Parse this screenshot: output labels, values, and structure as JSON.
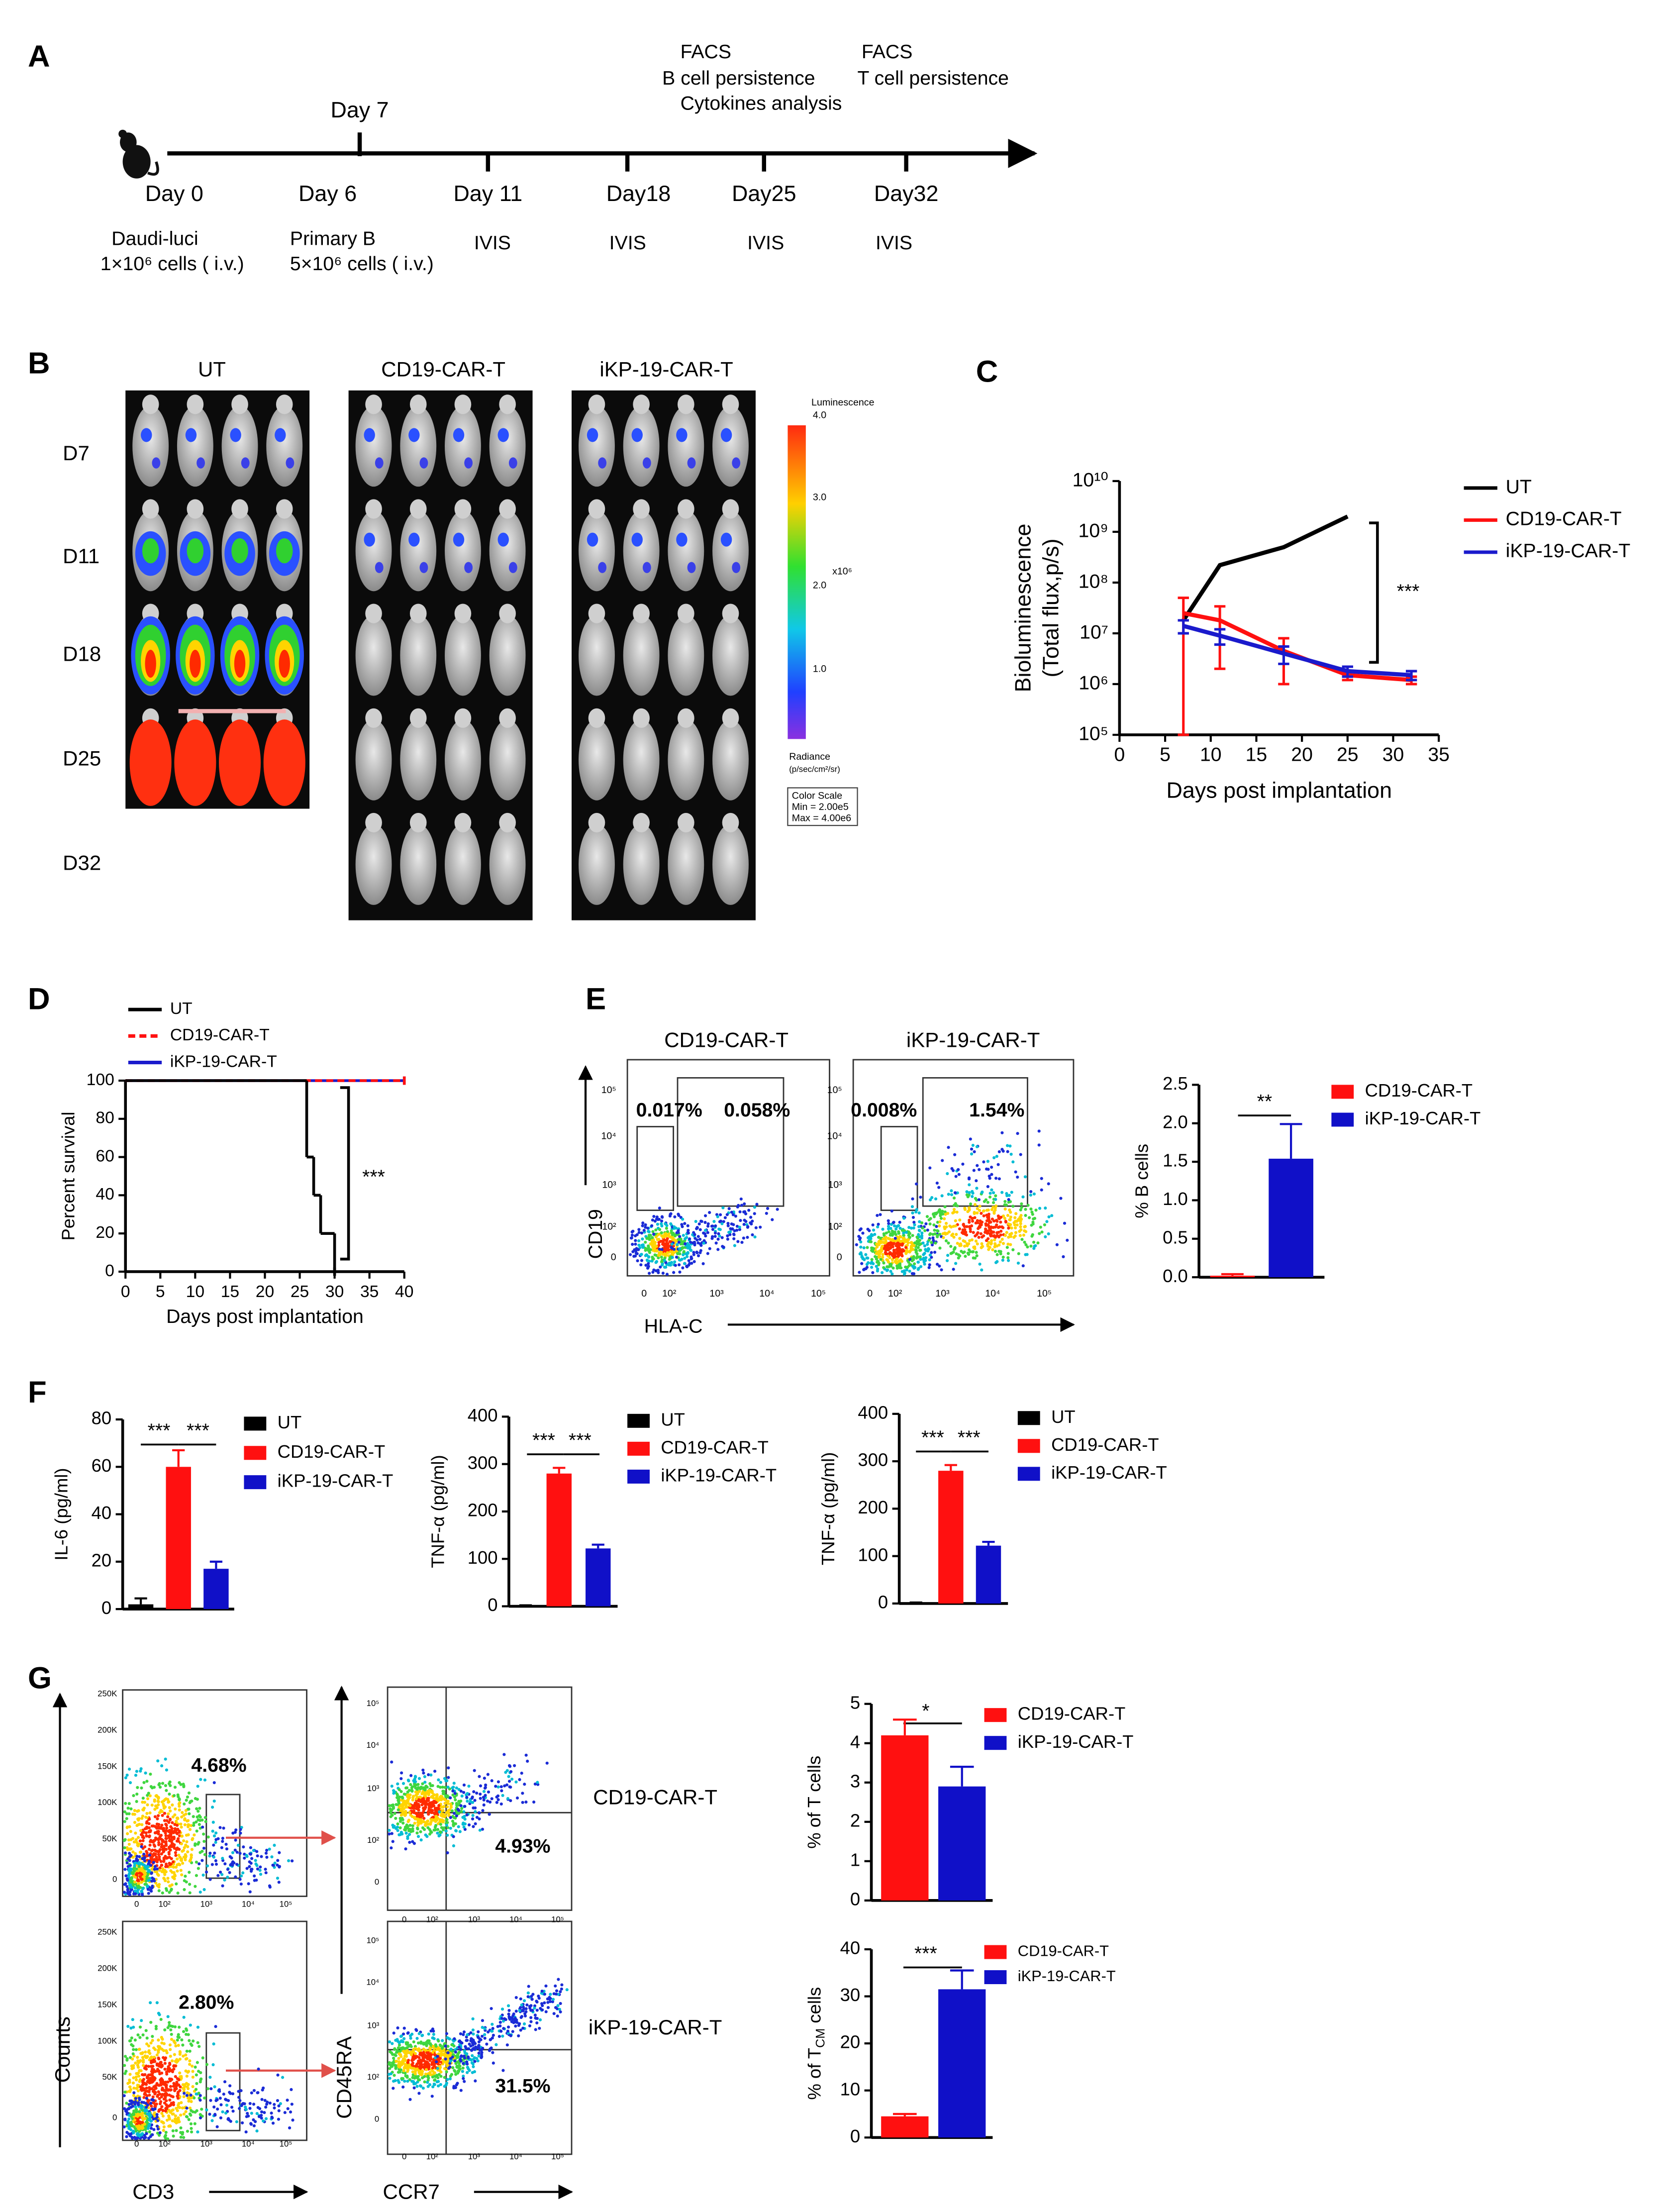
{
  "panel_labels": [
    "A",
    "B",
    "C",
    "D",
    "E",
    "F",
    "G"
  ],
  "timeline": {
    "days": [
      "Day 0",
      "Day 6",
      "Day 11",
      "Day18",
      "Day25",
      "Day32"
    ],
    "day7": "Day 7",
    "above": [
      "FACS",
      "B cell persistence",
      "Cytokines analysis",
      "FACS",
      "T cell persistence"
    ],
    "below": [
      "Daudi-luci",
      "1×10⁶ cells ( i.v.)",
      "Primary B",
      "5×10⁶ cells ( i.v.)",
      "IVIS",
      "IVIS",
      "IVIS",
      "IVIS"
    ]
  },
  "imaging": {
    "groups": [
      "UT",
      "CD19-CAR-T",
      "iKP-19-CAR-T"
    ],
    "days": [
      "D7",
      "D11",
      "D18",
      "D25",
      "D32"
    ],
    "colorbar": {
      "title": "Luminescence",
      "labels": [
        "4.0",
        "3.0",
        "2.0",
        "1.0"
      ],
      "unit": "x10⁶",
      "radiance": "Radiance",
      "radiance_unit": "(p/sec/cm²/sr)",
      "scale_title": "Color Scale",
      "min": "Min = 2.00e5",
      "max": "Max = 4.00e6"
    }
  },
  "flow_b": {
    "groups": [
      "CD19-CAR-T",
      "iKP-19-CAR-T"
    ],
    "gates": [
      [
        "0.017%",
        "0.058%"
      ],
      [
        "0.008%",
        "1.54%"
      ]
    ],
    "ylabel": "CD19",
    "xlabel": "HLA-C",
    "ticks": [
      "0",
      "10²",
      "10³",
      "10⁴",
      "10⁵"
    ]
  },
  "flow_t": {
    "groups": [
      "CD19-CAR-T",
      "iKP-19-CAR-T"
    ],
    "gates_cd3": [
      "4.68%",
      "2.80%"
    ],
    "gates_ccr7": [
      "4.93%",
      "31.5%"
    ],
    "count_ticks": [
      "0",
      "50K",
      "100K",
      "150K",
      "200K",
      "250K"
    ],
    "log_ticks": [
      "0",
      "10²",
      "10³",
      "10⁴",
      "10⁵"
    ],
    "labels": {
      "counts": "Counts",
      "cd3": "CD3",
      "cd45ra": "CD45RA",
      "ccr7": "CCR7"
    }
  },
  "chart_data": [
    {
      "type": "line",
      "log_y": true,
      "x": [
        7,
        11,
        18,
        25,
        32
      ],
      "series": [
        {
          "name": "UT",
          "color": "#000000",
          "values": [
            18000000.0,
            220000000.0,
            500000000.0,
            2000000000.0,
            null
          ]
        },
        {
          "name": "CD19-CAR-T",
          "color": "#ff1010",
          "values": [
            25000000.0,
            18000000.0,
            4500000.0,
            1500000.0,
            1200000.0
          ],
          "errors": [
            25000000.0,
            16000000.0,
            3500000.0,
            300000.0,
            200000.0
          ]
        },
        {
          "name": "iKP-19-CAR-T",
          "color": "#1a1acc",
          "values": [
            14000000.0,
            9000000.0,
            4000000.0,
            1800000.0,
            1500000.0
          ],
          "errors": [
            4000000.0,
            3000000.0,
            1500000.0,
            400000.0,
            300000.0
          ]
        }
      ],
      "xlim": [
        0,
        35
      ],
      "xticks": [
        0,
        5,
        10,
        15,
        20,
        25,
        30,
        35
      ],
      "ylim": [
        100000.0,
        10000000000.0
      ],
      "yticks": [
        {
          "value": 100000.0,
          "label": "10⁵"
        },
        {
          "value": 1000000.0,
          "label": "10⁶"
        },
        {
          "value": 10000000.0,
          "label": "10⁷"
        },
        {
          "value": 100000000.0,
          "label": "10⁸"
        },
        {
          "value": 1000000000.0,
          "label": "10⁹"
        },
        {
          "value": 10000000000.0,
          "label": "10¹⁰"
        }
      ],
      "ylabel": [
        "Bioluminescence",
        "(Total flux,p/s)"
      ],
      "xlabel": "Days post implantation",
      "annotations": [
        "***"
      ]
    },
    {
      "type": "step",
      "series": [
        {
          "name": "UT",
          "color": "#000000",
          "x": [
            0,
            26,
            27,
            28,
            30
          ],
          "values": [
            100,
            60,
            40,
            20,
            0
          ]
        },
        {
          "name": "CD19-CAR-T",
          "color": "#ff1010",
          "dash": true,
          "x": [
            0,
            40
          ],
          "values": [
            100,
            100
          ]
        },
        {
          "name": "iKP-19-CAR-T",
          "color": "#1a1acc",
          "x": [
            0,
            40
          ],
          "values": [
            100,
            100
          ]
        }
      ],
      "xlim": [
        0,
        40
      ],
      "xticks": [
        0,
        5,
        10,
        15,
        20,
        25,
        30,
        35,
        40
      ],
      "ylim": [
        0,
        100
      ],
      "yticks": [
        0,
        20,
        40,
        60,
        80,
        100
      ],
      "ylabel": "Percent survival",
      "xlabel": "Days post implantation",
      "annotations": [
        "***"
      ]
    },
    {
      "type": "bar",
      "categories": [
        null
      ],
      "series": [
        {
          "name": "CD19-CAR-T",
          "color": "#ff1010",
          "values": [
            0.02
          ],
          "errors": [
            0.02
          ]
        },
        {
          "name": "iKP-19-CAR-T",
          "color": "#1010c8",
          "values": [
            1.54
          ],
          "errors": [
            0.45
          ]
        }
      ],
      "ylim": [
        0,
        2.5
      ],
      "yticks": [
        {
          "value": 0,
          "label": "0.0"
        },
        {
          "value": 0.5,
          "label": "0.5"
        },
        {
          "value": 1,
          "label": "1.0"
        },
        {
          "value": 1.5,
          "label": "1.5"
        },
        {
          "value": 2,
          "label": "2.0"
        },
        {
          "value": 2.5,
          "label": "2.5"
        }
      ],
      "ylabel": "% B cells",
      "annotations": [
        "**"
      ]
    },
    {
      "type": "bar",
      "categories": [
        null
      ],
      "series": [
        {
          "name": "UT",
          "color": "#000000",
          "values": [
            2
          ],
          "errors": [
            2.5
          ]
        },
        {
          "name": "CD19-CAR-T",
          "color": "#ff1010",
          "values": [
            60
          ],
          "errors": [
            7
          ]
        },
        {
          "name": "iKP-19-CAR-T",
          "color": "#1010c8",
          "values": [
            17
          ],
          "errors": [
            3
          ]
        }
      ],
      "ylim": [
        0,
        80
      ],
      "yticks": [
        0,
        20,
        40,
        60,
        80
      ],
      "ylabel": "IL-6 (pg/ml)",
      "annotations": [
        "***",
        "***"
      ]
    },
    {
      "type": "bar",
      "categories": [
        null
      ],
      "series": [
        {
          "name": "UT",
          "color": "#000000",
          "values": [
            1
          ],
          "errors": [
            1
          ]
        },
        {
          "name": "CD19-CAR-T",
          "color": "#ff1010",
          "values": [
            280
          ],
          "errors": [
            12
          ]
        },
        {
          "name": "iKP-19-CAR-T",
          "color": "#1010c8",
          "values": [
            122
          ],
          "errors": [
            8
          ]
        }
      ],
      "ylim": [
        0,
        400
      ],
      "yticks": [
        0,
        100,
        200,
        300,
        400
      ],
      "ylabel": "TNF-α (pg/ml)",
      "annotations": [
        "***",
        "***"
      ]
    },
    {
      "type": "bar",
      "categories": [
        null
      ],
      "series": [
        {
          "name": "UT",
          "color": "#000000",
          "values": [
            1
          ],
          "errors": [
            1
          ]
        },
        {
          "name": "CD19-CAR-T",
          "color": "#ff1010",
          "values": [
            280
          ],
          "errors": [
            12
          ]
        },
        {
          "name": "iKP-19-CAR-T",
          "color": "#1010c8",
          "values": [
            122
          ],
          "errors": [
            8
          ]
        }
      ],
      "ylim": [
        0,
        400
      ],
      "yticks": [
        0,
        100,
        200,
        300,
        400
      ],
      "ylabel": "TNF-α (pg/ml)",
      "annotations": [
        "***",
        "***"
      ]
    },
    {
      "type": "bar",
      "categories": [
        null
      ],
      "series": [
        {
          "name": "CD19-CAR-T",
          "color": "#ff1010",
          "values": [
            4.2
          ],
          "errors": [
            0.4
          ]
        },
        {
          "name": "iKP-19-CAR-T",
          "color": "#1010c8",
          "values": [
            2.9
          ],
          "errors": [
            0.5
          ]
        }
      ],
      "ylim": [
        0,
        5
      ],
      "yticks": [
        0,
        1,
        2,
        3,
        4,
        5
      ],
      "ylabel": "% of T cells",
      "annotations": [
        "*"
      ]
    },
    {
      "type": "bar",
      "categories": [
        null
      ],
      "series": [
        {
          "name": "CD19-CAR-T",
          "color": "#ff1010",
          "values": [
            4.5
          ],
          "errors": [
            0.5
          ]
        },
        {
          "name": "iKP-19-CAR-T",
          "color": "#1010c8",
          "values": [
            31.5
          ],
          "errors": [
            4
          ]
        }
      ],
      "ylim": [
        0,
        40
      ],
      "yticks": [
        0,
        10,
        20,
        30,
        40
      ],
      "ylabel": [
        "% of T",
        "CM",
        " cells"
      ],
      "annotations": [
        "***"
      ]
    }
  ]
}
